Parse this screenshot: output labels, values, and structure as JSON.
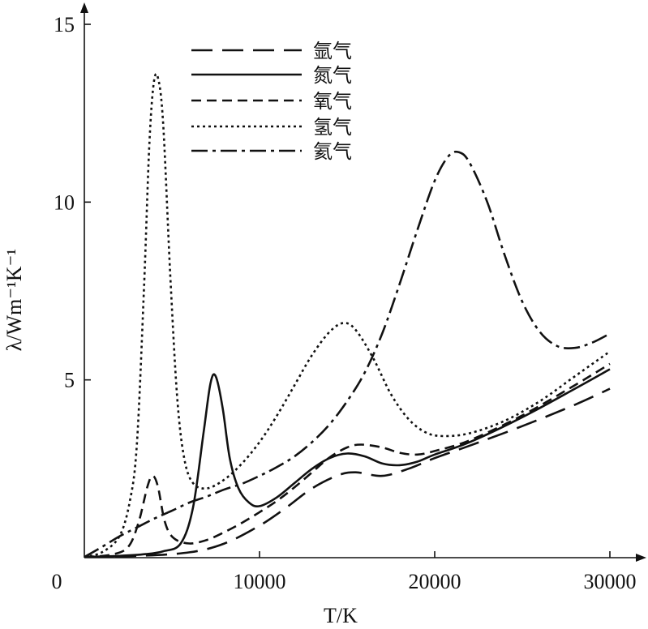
{
  "chart_data": {
    "type": "line",
    "xlabel": "T/K",
    "ylabel": "λ/Wm⁻¹K⁻¹",
    "xlim": [
      0,
      31500
    ],
    "ylim": [
      0,
      15.5
    ],
    "x_ticks": [
      {
        "value": 0,
        "label": "0"
      },
      {
        "value": 10000,
        "label": "10000"
      },
      {
        "value": 20000,
        "label": "20000"
      },
      {
        "value": 30000,
        "label": "30000"
      }
    ],
    "y_ticks": [
      {
        "value": 5,
        "label": "5"
      },
      {
        "value": 10,
        "label": "10"
      },
      {
        "value": 15,
        "label": "15"
      }
    ],
    "grid": false,
    "legend_position": "top-left",
    "series": [
      {
        "name": "氩气",
        "dash": "long-dash",
        "points": [
          [
            0,
            0.02
          ],
          [
            3000,
            0.05
          ],
          [
            6000,
            0.15
          ],
          [
            8000,
            0.4
          ],
          [
            10000,
            0.9
          ],
          [
            11500,
            1.4
          ],
          [
            13000,
            1.95
          ],
          [
            14500,
            2.32
          ],
          [
            15500,
            2.4
          ],
          [
            17000,
            2.3
          ],
          [
            18500,
            2.5
          ],
          [
            20000,
            2.8
          ],
          [
            22000,
            3.15
          ],
          [
            25000,
            3.7
          ],
          [
            28000,
            4.3
          ],
          [
            30000,
            4.75
          ]
        ]
      },
      {
        "name": "氮气",
        "dash": "solid",
        "points": [
          [
            0,
            0.02
          ],
          [
            2000,
            0.05
          ],
          [
            3500,
            0.1
          ],
          [
            4500,
            0.18
          ],
          [
            5500,
            0.4
          ],
          [
            6200,
            1.4
          ],
          [
            6800,
            3.5
          ],
          [
            7200,
            4.9
          ],
          [
            7500,
            5.1
          ],
          [
            7900,
            4.2
          ],
          [
            8300,
            2.8
          ],
          [
            8800,
            1.95
          ],
          [
            9400,
            1.55
          ],
          [
            10000,
            1.45
          ],
          [
            11000,
            1.7
          ],
          [
            12000,
            2.1
          ],
          [
            13000,
            2.5
          ],
          [
            14000,
            2.8
          ],
          [
            15000,
            2.93
          ],
          [
            16000,
            2.85
          ],
          [
            17000,
            2.65
          ],
          [
            18000,
            2.6
          ],
          [
            19000,
            2.7
          ],
          [
            20000,
            2.9
          ],
          [
            22000,
            3.25
          ],
          [
            25000,
            3.95
          ],
          [
            28000,
            4.75
          ],
          [
            30000,
            5.3
          ]
        ]
      },
      {
        "name": "氧气",
        "dash": "short-dash",
        "points": [
          [
            0,
            0.02
          ],
          [
            1500,
            0.08
          ],
          [
            2500,
            0.3
          ],
          [
            3100,
            1.0
          ],
          [
            3600,
            2.0
          ],
          [
            3900,
            2.3
          ],
          [
            4200,
            2.0
          ],
          [
            4600,
            1.0
          ],
          [
            5100,
            0.55
          ],
          [
            6000,
            0.4
          ],
          [
            7000,
            0.5
          ],
          [
            8000,
            0.72
          ],
          [
            9000,
            0.98
          ],
          [
            10000,
            1.28
          ],
          [
            11000,
            1.6
          ],
          [
            12000,
            1.98
          ],
          [
            13000,
            2.4
          ],
          [
            14000,
            2.82
          ],
          [
            15000,
            3.1
          ],
          [
            15800,
            3.18
          ],
          [
            17000,
            3.1
          ],
          [
            18000,
            2.95
          ],
          [
            19000,
            2.9
          ],
          [
            20000,
            3.0
          ],
          [
            22000,
            3.3
          ],
          [
            25000,
            4.0
          ],
          [
            28000,
            4.85
          ],
          [
            30000,
            5.45
          ]
        ]
      },
      {
        "name": "氢气",
        "dash": "dotted",
        "points": [
          [
            0,
            0.02
          ],
          [
            1000,
            0.15
          ],
          [
            2000,
            0.6
          ],
          [
            2600,
            1.6
          ],
          [
            3000,
            3.2
          ],
          [
            3400,
            7.5
          ],
          [
            3700,
            11.5
          ],
          [
            3950,
            13.3
          ],
          [
            4200,
            13.5
          ],
          [
            4500,
            12.2
          ],
          [
            4900,
            8.0
          ],
          [
            5300,
            4.5
          ],
          [
            5700,
            2.8
          ],
          [
            6200,
            2.1
          ],
          [
            7000,
            1.95
          ],
          [
            8000,
            2.2
          ],
          [
            9000,
            2.65
          ],
          [
            10000,
            3.25
          ],
          [
            11000,
            4.0
          ],
          [
            12000,
            4.85
          ],
          [
            13000,
            5.7
          ],
          [
            14000,
            6.35
          ],
          [
            14800,
            6.6
          ],
          [
            15500,
            6.4
          ],
          [
            16500,
            5.6
          ],
          [
            17500,
            4.6
          ],
          [
            18500,
            3.9
          ],
          [
            19500,
            3.52
          ],
          [
            20500,
            3.42
          ],
          [
            22000,
            3.5
          ],
          [
            24000,
            3.85
          ],
          [
            26000,
            4.4
          ],
          [
            28000,
            5.1
          ],
          [
            30000,
            5.8
          ]
        ]
      },
      {
        "name": "氦气",
        "dash": "dash-dot",
        "points": [
          [
            0,
            0.02
          ],
          [
            1000,
            0.3
          ],
          [
            2000,
            0.6
          ],
          [
            3000,
            0.85
          ],
          [
            4000,
            1.1
          ],
          [
            5000,
            1.32
          ],
          [
            6000,
            1.55
          ],
          [
            7000,
            1.72
          ],
          [
            8000,
            1.92
          ],
          [
            9000,
            2.08
          ],
          [
            10000,
            2.3
          ],
          [
            11000,
            2.55
          ],
          [
            12000,
            2.85
          ],
          [
            13000,
            3.25
          ],
          [
            14000,
            3.75
          ],
          [
            15000,
            4.4
          ],
          [
            16000,
            5.2
          ],
          [
            17000,
            6.3
          ],
          [
            18000,
            7.7
          ],
          [
            19000,
            9.2
          ],
          [
            20000,
            10.6
          ],
          [
            20800,
            11.3
          ],
          [
            21400,
            11.4
          ],
          [
            22000,
            11.1
          ],
          [
            23000,
            10.0
          ],
          [
            24000,
            8.5
          ],
          [
            25000,
            7.2
          ],
          [
            26000,
            6.35
          ],
          [
            27000,
            5.95
          ],
          [
            28000,
            5.9
          ],
          [
            29000,
            6.05
          ],
          [
            30000,
            6.3
          ]
        ]
      }
    ]
  }
}
